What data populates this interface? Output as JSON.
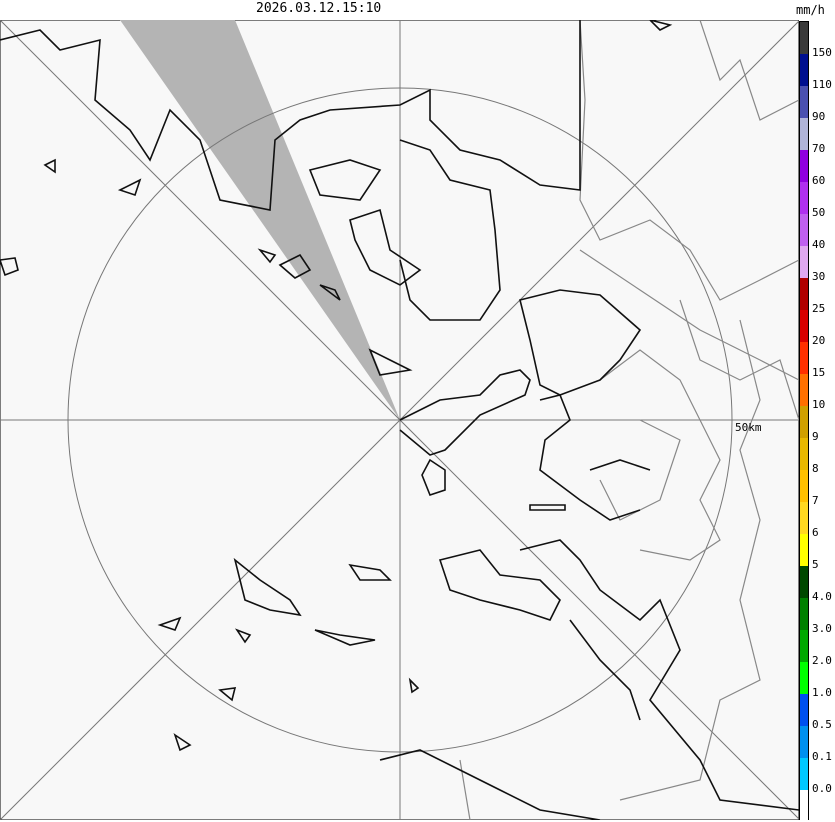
{
  "header": {
    "timestamp": "2026.03.12.15:10",
    "unit": "mm/h"
  },
  "map": {
    "range_ring_label": "50km",
    "blocked_sector_color": "#b4b4b4",
    "background": "#f8f8f8"
  },
  "legend": {
    "colors": [
      "#3a3a3a",
      "#000f8f",
      "#4a50b0",
      "#b0b4d8",
      "#9000e0",
      "#b030f0",
      "#c060f0",
      "#e0a8f0",
      "#b00000",
      "#d80000",
      "#ff3000",
      "#ff7000",
      "#d0a000",
      "#e8b800",
      "#ffc000",
      "#ffd820",
      "#ffff00",
      "#004800",
      "#008000",
      "#00a800",
      "#00ff00",
      "#0050f0",
      "#0090f0",
      "#00c8ff",
      "#ffffff"
    ],
    "labels": [
      "150",
      "110",
      "90",
      "70",
      "60",
      "50",
      "40",
      "30",
      "25",
      "20",
      "15",
      "10",
      "9",
      "8",
      "7",
      "6",
      "5",
      "4.0",
      "3.0",
      "2.0",
      "1.0",
      "0.5",
      "0.1",
      "0.0"
    ]
  }
}
